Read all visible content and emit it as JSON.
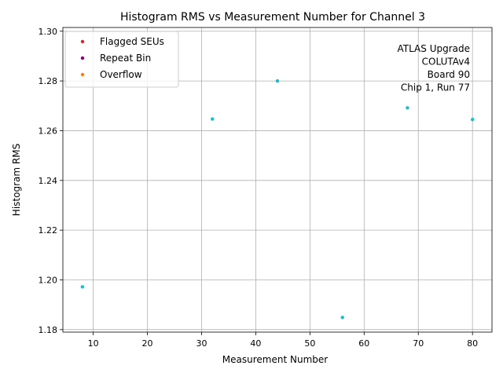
{
  "chart_data": {
    "type": "scatter",
    "title": "Histogram RMS vs Measurement Number for Channel 3",
    "xlabel": "Measurement Number",
    "ylabel": "Histogram RMS",
    "xlim": [
      4.4,
      83.6
    ],
    "ylim": [
      1.179,
      1.3015
    ],
    "xticks": [
      10,
      20,
      30,
      40,
      50,
      60,
      70,
      80
    ],
    "yticks": [
      1.18,
      1.2,
      1.22,
      1.24,
      1.26,
      1.28,
      1.3
    ],
    "xtick_labels": [
      "10",
      "20",
      "30",
      "40",
      "50",
      "60",
      "70",
      "80"
    ],
    "ytick_labels": [
      "1.18",
      "1.20",
      "1.22",
      "1.24",
      "1.26",
      "1.28",
      "1.30"
    ],
    "grid": true,
    "series": [
      {
        "color": "#17becf",
        "points": [
          {
            "x": 8,
            "y": 1.1972
          },
          {
            "x": 32,
            "y": 1.2647
          },
          {
            "x": 44,
            "y": 1.28
          },
          {
            "x": 56,
            "y": 1.1849
          },
          {
            "x": 68,
            "y": 1.2692
          },
          {
            "x": 80,
            "y": 1.2645
          }
        ]
      }
    ],
    "legend": {
      "placement": "top-left",
      "entries": [
        {
          "label": "Flagged SEUs",
          "color": "#d62728"
        },
        {
          "label": "Repeat Bin",
          "color": "#800080"
        },
        {
          "label": "Overflow",
          "color": "#ff7f0e"
        }
      ]
    },
    "annotation": {
      "placement": "top-right",
      "lines": [
        "ATLAS Upgrade",
        "COLUTAv4",
        "Board 90",
        "Chip 1, Run 77"
      ]
    }
  }
}
